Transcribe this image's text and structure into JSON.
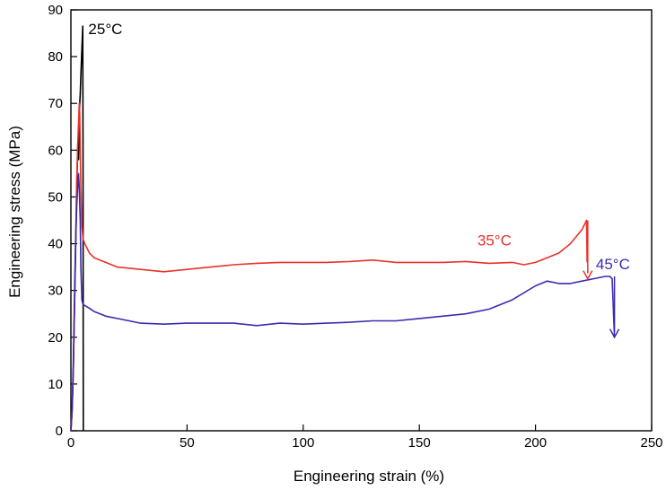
{
  "chart_data": {
    "type": "line",
    "xlabel": "Engineering strain (%)",
    "ylabel": "Engineering stress (MPa)",
    "xlim": [
      0,
      250
    ],
    "ylim": [
      0,
      90
    ],
    "x_ticks": [
      0,
      50,
      100,
      150,
      200,
      250
    ],
    "y_ticks": [
      0,
      10,
      20,
      30,
      40,
      50,
      60,
      70,
      80,
      90
    ],
    "grid": false,
    "series": [
      {
        "name": "25°C",
        "color": "#000000",
        "points": [
          [
            0,
            0
          ],
          [
            0.5,
            4
          ],
          [
            1,
            12
          ],
          [
            1.5,
            25
          ],
          [
            2,
            38
          ],
          [
            2.5,
            52
          ],
          [
            3,
            62
          ],
          [
            3.3,
            58
          ],
          [
            3.6,
            68
          ],
          [
            4,
            72
          ],
          [
            4.3,
            76
          ],
          [
            4.6,
            80
          ],
          [
            4.9,
            84
          ],
          [
            5.1,
            86.5
          ],
          [
            5.2,
            60
          ],
          [
            5.3,
            20
          ],
          [
            5.35,
            0
          ]
        ]
      },
      {
        "name": "35°C",
        "color": "#e8322b",
        "points": [
          [
            0,
            0
          ],
          [
            0.5,
            4
          ],
          [
            1,
            12
          ],
          [
            1.5,
            25
          ],
          [
            2,
            40
          ],
          [
            2.5,
            54
          ],
          [
            3,
            62
          ],
          [
            3.3,
            66
          ],
          [
            3.6,
            70
          ],
          [
            3.8,
            68
          ],
          [
            4,
            60
          ],
          [
            4.3,
            52
          ],
          [
            4.7,
            44
          ],
          [
            5.2,
            41
          ],
          [
            6,
            40
          ],
          [
            8,
            38
          ],
          [
            10,
            37
          ],
          [
            15,
            36
          ],
          [
            20,
            35
          ],
          [
            30,
            34.5
          ],
          [
            40,
            34
          ],
          [
            50,
            34.5
          ],
          [
            60,
            35
          ],
          [
            70,
            35.5
          ],
          [
            80,
            35.8
          ],
          [
            90,
            36
          ],
          [
            100,
            36
          ],
          [
            110,
            36
          ],
          [
            120,
            36.2
          ],
          [
            130,
            36.5
          ],
          [
            140,
            36
          ],
          [
            150,
            36
          ],
          [
            160,
            36
          ],
          [
            170,
            36.2
          ],
          [
            180,
            35.8
          ],
          [
            190,
            36
          ],
          [
            195,
            35.5
          ],
          [
            200,
            36
          ],
          [
            205,
            37
          ],
          [
            210,
            38
          ],
          [
            215,
            40
          ],
          [
            220,
            43
          ],
          [
            222,
            45
          ],
          [
            222.2,
            36
          ]
        ]
      },
      {
        "name": "45°C",
        "color": "#3a2bb0",
        "points": [
          [
            0,
            0
          ],
          [
            0.5,
            5
          ],
          [
            1,
            14
          ],
          [
            1.5,
            28
          ],
          [
            2,
            40
          ],
          [
            2.5,
            48
          ],
          [
            3,
            53
          ],
          [
            3.3,
            55
          ],
          [
            3.6,
            52
          ],
          [
            4,
            45
          ],
          [
            4.3,
            35
          ],
          [
            4.7,
            28
          ],
          [
            5.2,
            27
          ],
          [
            7,
            26.5
          ],
          [
            10,
            25.5
          ],
          [
            15,
            24.5
          ],
          [
            20,
            24
          ],
          [
            30,
            23
          ],
          [
            40,
            22.8
          ],
          [
            50,
            23
          ],
          [
            60,
            23
          ],
          [
            70,
            23
          ],
          [
            80,
            22.5
          ],
          [
            90,
            23
          ],
          [
            100,
            22.8
          ],
          [
            110,
            23
          ],
          [
            120,
            23.2
          ],
          [
            130,
            23.5
          ],
          [
            140,
            23.5
          ],
          [
            150,
            24
          ],
          [
            160,
            24.5
          ],
          [
            170,
            25
          ],
          [
            180,
            26
          ],
          [
            190,
            28
          ],
          [
            200,
            31
          ],
          [
            205,
            32
          ],
          [
            210,
            31.5
          ],
          [
            215,
            31.5
          ],
          [
            220,
            32
          ],
          [
            225,
            32.5
          ],
          [
            230,
            33
          ],
          [
            232,
            33
          ],
          [
            233,
            32.5
          ],
          [
            234,
            20
          ]
        ]
      }
    ],
    "annotations": [
      {
        "text": "25°C",
        "color": "#000000",
        "x": 7.5,
        "y": 84.8
      },
      {
        "text": "35°C",
        "color": "#e8322b",
        "x": 175,
        "y": 39.6
      },
      {
        "text": "45°C",
        "color": "#3a2bb0",
        "x": 226,
        "y": 34.5
      }
    ],
    "arrows": [
      {
        "color": "#e8322b",
        "x": 222.5,
        "y_from": 45,
        "y_to": 32.5
      },
      {
        "color": "#3a2bb0",
        "x": 234,
        "y_from": 33,
        "y_to": 20
      }
    ]
  }
}
